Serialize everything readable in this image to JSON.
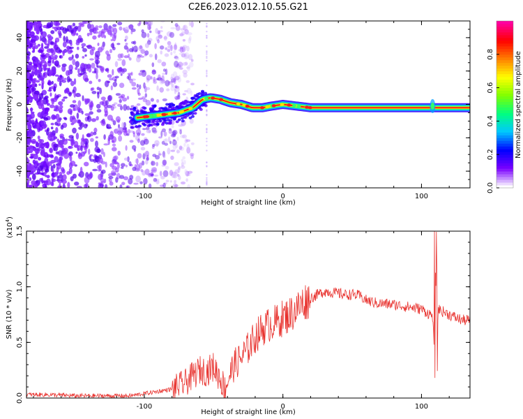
{
  "title": "C2E6.2023.012.10.55.G21",
  "chart_data": [
    {
      "type": "heatmap",
      "xlabel": "Height of straight line (km)",
      "ylabel": "Frequency (Hz)",
      "xlim": [
        -185,
        135
      ],
      "ylim": [
        -50,
        50
      ],
      "xticks": [
        -100,
        0,
        100
      ],
      "yticks": [
        -40,
        -20,
        0,
        20,
        40
      ],
      "tracking_line": {
        "x": [
          -105,
          -95,
          -85,
          -75,
          -65,
          -58,
          -52,
          -45,
          -38,
          -30,
          -22,
          -15,
          -8,
          0,
          10,
          20,
          40,
          60,
          80,
          100,
          110,
          135
        ],
        "y": [
          -8,
          -7,
          -6,
          -5,
          -2,
          3,
          4,
          3,
          1,
          0,
          -2,
          -2,
          -1,
          0,
          -1,
          -2,
          -2,
          -2,
          -2,
          -2,
          -2,
          -2
        ]
      },
      "colorbar": {
        "label": "Normalized spectral amplitude",
        "range": [
          0,
          1
        ],
        "ticks": [
          "0.0",
          "0.2",
          "0.4",
          "0.6",
          "0.8"
        ],
        "ticks_values": [
          0,
          0.2,
          0.4,
          0.6,
          0.8
        ],
        "colormap": [
          "#ffffff",
          "#7a00ff",
          "#0000ff",
          "#00c8ff",
          "#00ff80",
          "#80ff00",
          "#ffff00",
          "#ff8000",
          "#ff0000",
          "#ff00a0"
        ]
      }
    },
    {
      "type": "line",
      "xlabel": "Height of straight line (km)",
      "ylabel": "SNR (10 * v/v)",
      "scale_label": "(x10",
      "scale_exponent": "4",
      "scale_close": ")",
      "xlim": [
        -185,
        135
      ],
      "ylim": [
        0,
        1.5
      ],
      "xticks": [
        -100,
        0,
        100
      ],
      "yticks": [
        "0.0",
        "0.5",
        "1.0",
        "1.5"
      ],
      "yticks_values": [
        0,
        0.5,
        1.0,
        1.5
      ],
      "color": "#e8322e",
      "series": [
        {
          "x": [
            -185,
            -170,
            -150,
            -130,
            -110,
            -100,
            -90,
            -80,
            -70,
            -65,
            -60,
            -55,
            -50,
            -45,
            -42,
            -38,
            -35,
            -30,
            -25,
            -20,
            -15,
            -10,
            -5,
            0,
            5,
            10,
            15,
            20,
            25,
            30,
            35,
            40,
            45,
            50,
            55,
            60,
            65,
            70,
            80,
            90,
            100,
            105,
            108,
            110,
            112,
            115,
            120,
            125,
            130,
            135
          ],
          "y": [
            0.03,
            0.03,
            0.02,
            0.02,
            0.02,
            0.04,
            0.06,
            0.08,
            0.14,
            0.2,
            0.25,
            0.24,
            0.28,
            0.18,
            0.08,
            0.22,
            0.3,
            0.36,
            0.45,
            0.55,
            0.62,
            0.66,
            0.68,
            0.72,
            0.75,
            0.8,
            0.86,
            0.9,
            0.93,
            0.96,
            0.95,
            0.94,
            0.93,
            0.93,
            0.92,
            0.88,
            0.86,
            0.85,
            0.84,
            0.82,
            0.8,
            0.76,
            0.74,
            0.2,
            0.8,
            0.78,
            0.75,
            0.72,
            0.7,
            0.7
          ]
        }
      ]
    }
  ]
}
